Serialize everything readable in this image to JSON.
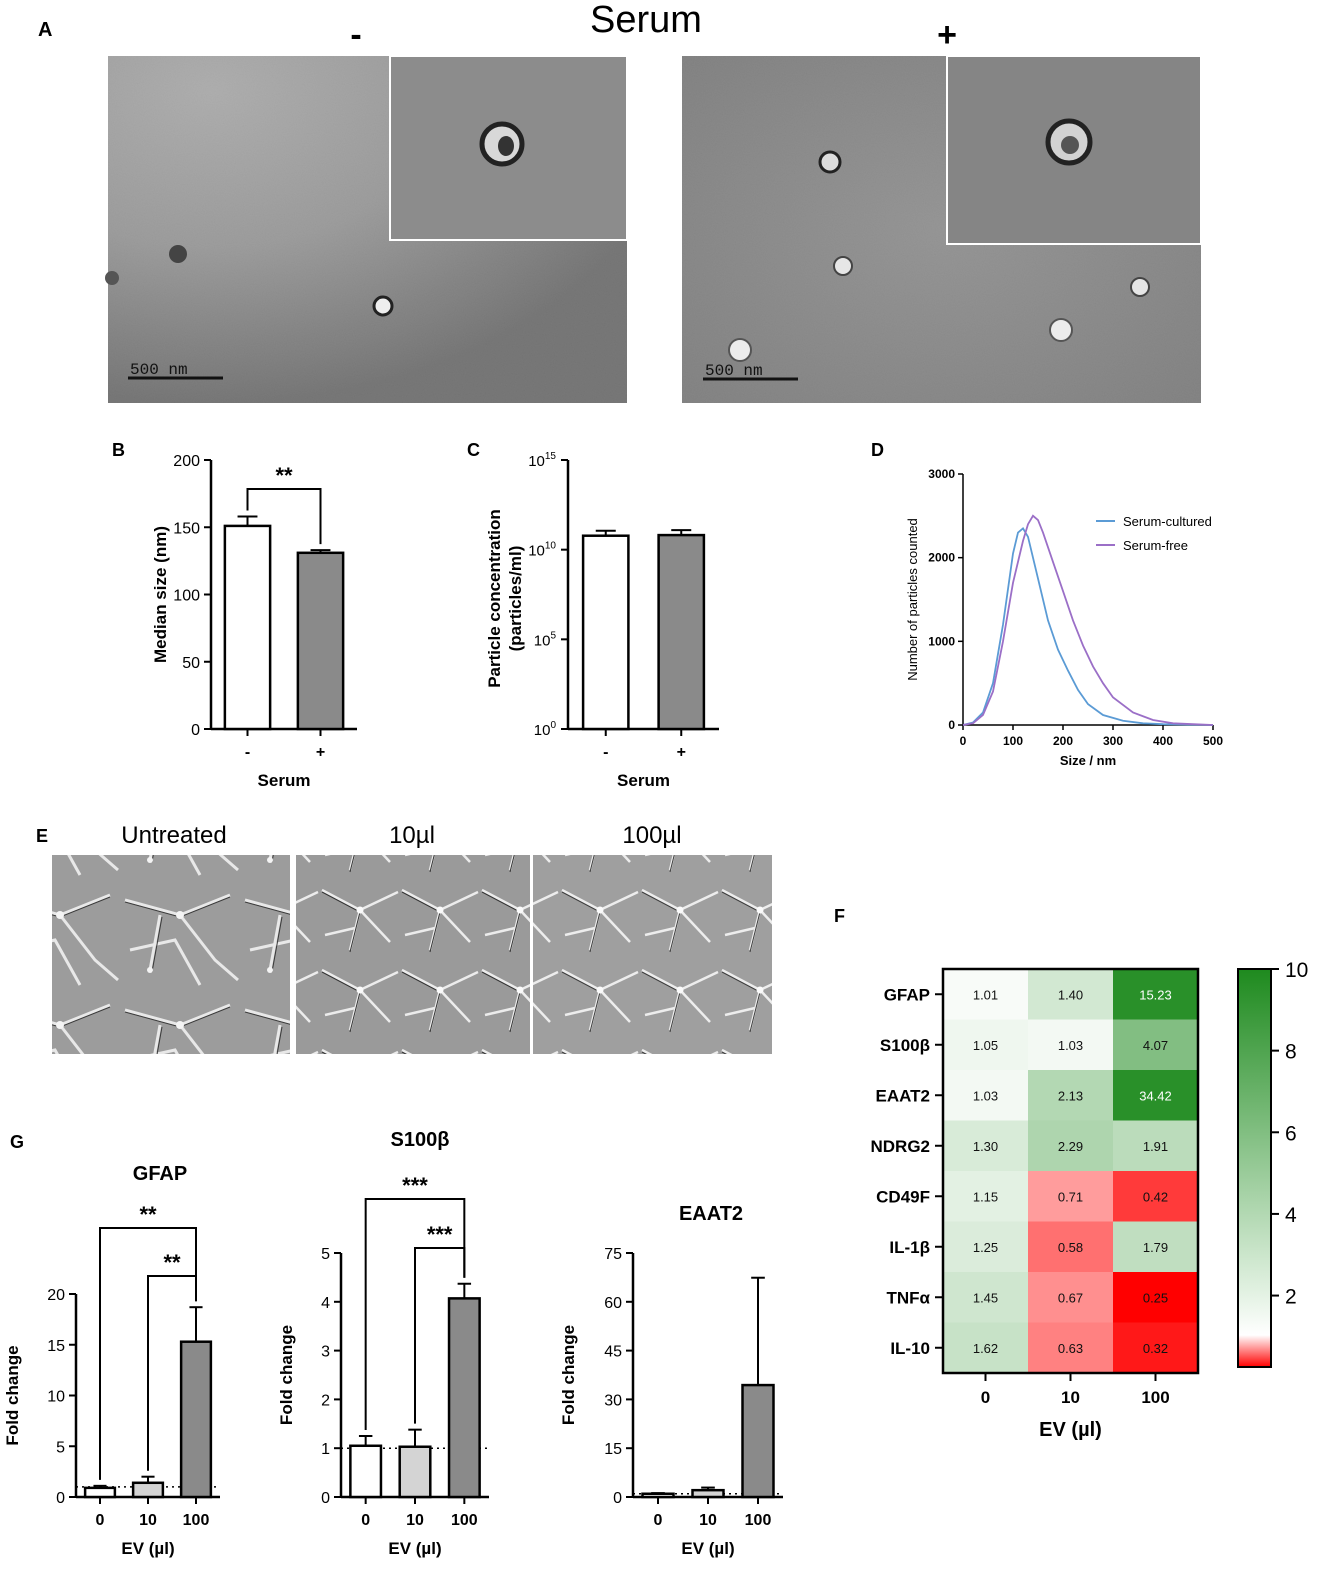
{
  "panels": {
    "A": "A",
    "B": "B",
    "C": "C",
    "D": "D",
    "E": "E",
    "F": "F",
    "G": "G"
  },
  "panel_a": {
    "title": "Serum",
    "minus": "-",
    "plus": "+",
    "scale_left": "500 nm",
    "scale_right": "500 nm"
  },
  "panel_e": {
    "labels": [
      "Untreated",
      "10µl",
      "100µl"
    ]
  },
  "colors": {
    "white_bar": "#ffffff",
    "light_bar": "#d4d4d4",
    "dark_bar": "#8a8a8a",
    "serum_cultured": "#5b9bd5",
    "serum_free": "#9b6fc7",
    "heat_high": "#1e8a1e",
    "heat_low": "#ff0000"
  },
  "chart_data": [
    {
      "id": "B",
      "type": "bar",
      "categories": [
        "-",
        "+"
      ],
      "values": [
        151,
        131
      ],
      "errors": [
        7,
        2
      ],
      "ylabel": "Median size (nm)",
      "xlabel": "Serum",
      "ylim": [
        0,
        200
      ],
      "yticks": [
        "0",
        "50",
        "100",
        "150",
        "200"
      ],
      "significance": [
        {
          "from": 0,
          "to": 1,
          "label": "**"
        }
      ]
    },
    {
      "id": "C",
      "type": "bar",
      "scale": "log",
      "categories": [
        "-",
        "+"
      ],
      "values": [
        60000000000.0,
        65000000000.0
      ],
      "ylabel_line1": "Particle concentration",
      "ylabel_line2": "(particles/ml)",
      "xlabel": "Serum",
      "ylim": [
        1,
        1000000000000000.0
      ],
      "yticks": [
        {
          "base": "10",
          "exp": "0"
        },
        {
          "base": "10",
          "exp": "5"
        },
        {
          "base": "10",
          "exp": "10"
        },
        {
          "base": "10",
          "exp": "15"
        }
      ]
    },
    {
      "id": "D",
      "type": "line",
      "xlabel": "Size / nm",
      "ylabel": "Number of particles counted",
      "xlim": [
        0,
        500
      ],
      "ylim": [
        0,
        3000
      ],
      "xticks": [
        "0",
        "100",
        "200",
        "300",
        "400",
        "500"
      ],
      "yticks": [
        "0",
        "1000",
        "2000",
        "3000"
      ],
      "legend_position": "top-right",
      "series": [
        {
          "name": "Serum-cultured",
          "x": [
            0,
            20,
            40,
            60,
            80,
            100,
            110,
            120,
            130,
            140,
            150,
            170,
            190,
            210,
            230,
            250,
            280,
            320,
            360,
            400,
            450,
            500
          ],
          "y": [
            0,
            30,
            150,
            500,
            1200,
            2050,
            2300,
            2350,
            2250,
            2000,
            1750,
            1250,
            900,
            650,
            420,
            250,
            120,
            50,
            20,
            10,
            5,
            0
          ]
        },
        {
          "name": "Serum-free",
          "x": [
            0,
            20,
            40,
            60,
            80,
            100,
            120,
            130,
            140,
            150,
            160,
            180,
            200,
            220,
            240,
            260,
            280,
            300,
            340,
            380,
            420,
            460,
            500
          ],
          "y": [
            0,
            20,
            120,
            400,
            1000,
            1700,
            2200,
            2400,
            2500,
            2450,
            2300,
            1950,
            1600,
            1250,
            950,
            700,
            500,
            330,
            150,
            60,
            20,
            10,
            0
          ]
        }
      ]
    },
    {
      "id": "F",
      "type": "heatmap",
      "rows": [
        "GFAP",
        "S100β",
        "EAAT2",
        "NDRG2",
        "CD49F",
        "IL-1β",
        "TNFα",
        "IL-10"
      ],
      "columns": [
        "0",
        "10",
        "100"
      ],
      "values": [
        [
          1.01,
          1.4,
          15.23
        ],
        [
          1.05,
          1.03,
          4.07
        ],
        [
          1.03,
          2.13,
          34.42
        ],
        [
          1.3,
          2.29,
          1.91
        ],
        [
          1.15,
          0.71,
          0.42
        ],
        [
          1.25,
          0.58,
          1.79
        ],
        [
          1.45,
          0.67,
          0.25
        ],
        [
          1.62,
          0.63,
          0.32
        ]
      ],
      "labels": [
        [
          "1.01",
          "1.40",
          "15.23"
        ],
        [
          "1.05",
          "1.03",
          "4.07"
        ],
        [
          "1.03",
          "2.13",
          "34.42"
        ],
        [
          "1.30",
          "2.29",
          "1.91"
        ],
        [
          "1.15",
          "0.71",
          "0.42"
        ],
        [
          "1.25",
          "0.58",
          "1.79"
        ],
        [
          "1.45",
          "0.67",
          "0.25"
        ],
        [
          "1.62",
          "0.63",
          "0.32"
        ]
      ],
      "xlabel": "EV (µl)",
      "colorbar_ticks": [
        "2",
        "4",
        "6",
        "8",
        "10"
      ],
      "colorbar_range": [
        0.25,
        10
      ]
    },
    {
      "id": "G1",
      "type": "bar",
      "title": "GFAP",
      "categories": [
        "0",
        "10",
        "100"
      ],
      "values": [
        0.9,
        1.4,
        15.3
      ],
      "errors": [
        0.2,
        0.6,
        3.4
      ],
      "ylabel": "Fold change",
      "xlabel": "EV (µl)",
      "ylim": [
        0,
        20
      ],
      "yticks": [
        "0",
        "5",
        "10",
        "15",
        "20"
      ],
      "reference_line": 1,
      "significance": [
        {
          "from": 0,
          "to": 2,
          "label": "**"
        },
        {
          "from": 1,
          "to": 2,
          "label": "**"
        }
      ]
    },
    {
      "id": "G2",
      "type": "bar",
      "title": "S100β",
      "categories": [
        "0",
        "10",
        "100"
      ],
      "values": [
        1.05,
        1.03,
        4.07
      ],
      "errors": [
        0.2,
        0.35,
        0.3
      ],
      "ylabel": "Fold change",
      "xlabel": "EV (µl)",
      "ylim": [
        0,
        5
      ],
      "yticks": [
        "0",
        "1",
        "2",
        "3",
        "4",
        "5"
      ],
      "reference_line": 1,
      "significance": [
        {
          "from": 0,
          "to": 2,
          "label": "***"
        },
        {
          "from": 1,
          "to": 2,
          "label": "***"
        }
      ]
    },
    {
      "id": "G3",
      "type": "bar",
      "title": "EAAT2",
      "categories": [
        "0",
        "10",
        "100"
      ],
      "values": [
        1.0,
        2.1,
        34.4
      ],
      "errors": [
        0.2,
        0.8,
        33.0
      ],
      "ylabel": "Fold change",
      "xlabel": "EV (µl)",
      "ylim": [
        0,
        75
      ],
      "yticks": [
        "0",
        "15",
        "30",
        "45",
        "60",
        "75"
      ],
      "reference_line": 1
    }
  ]
}
